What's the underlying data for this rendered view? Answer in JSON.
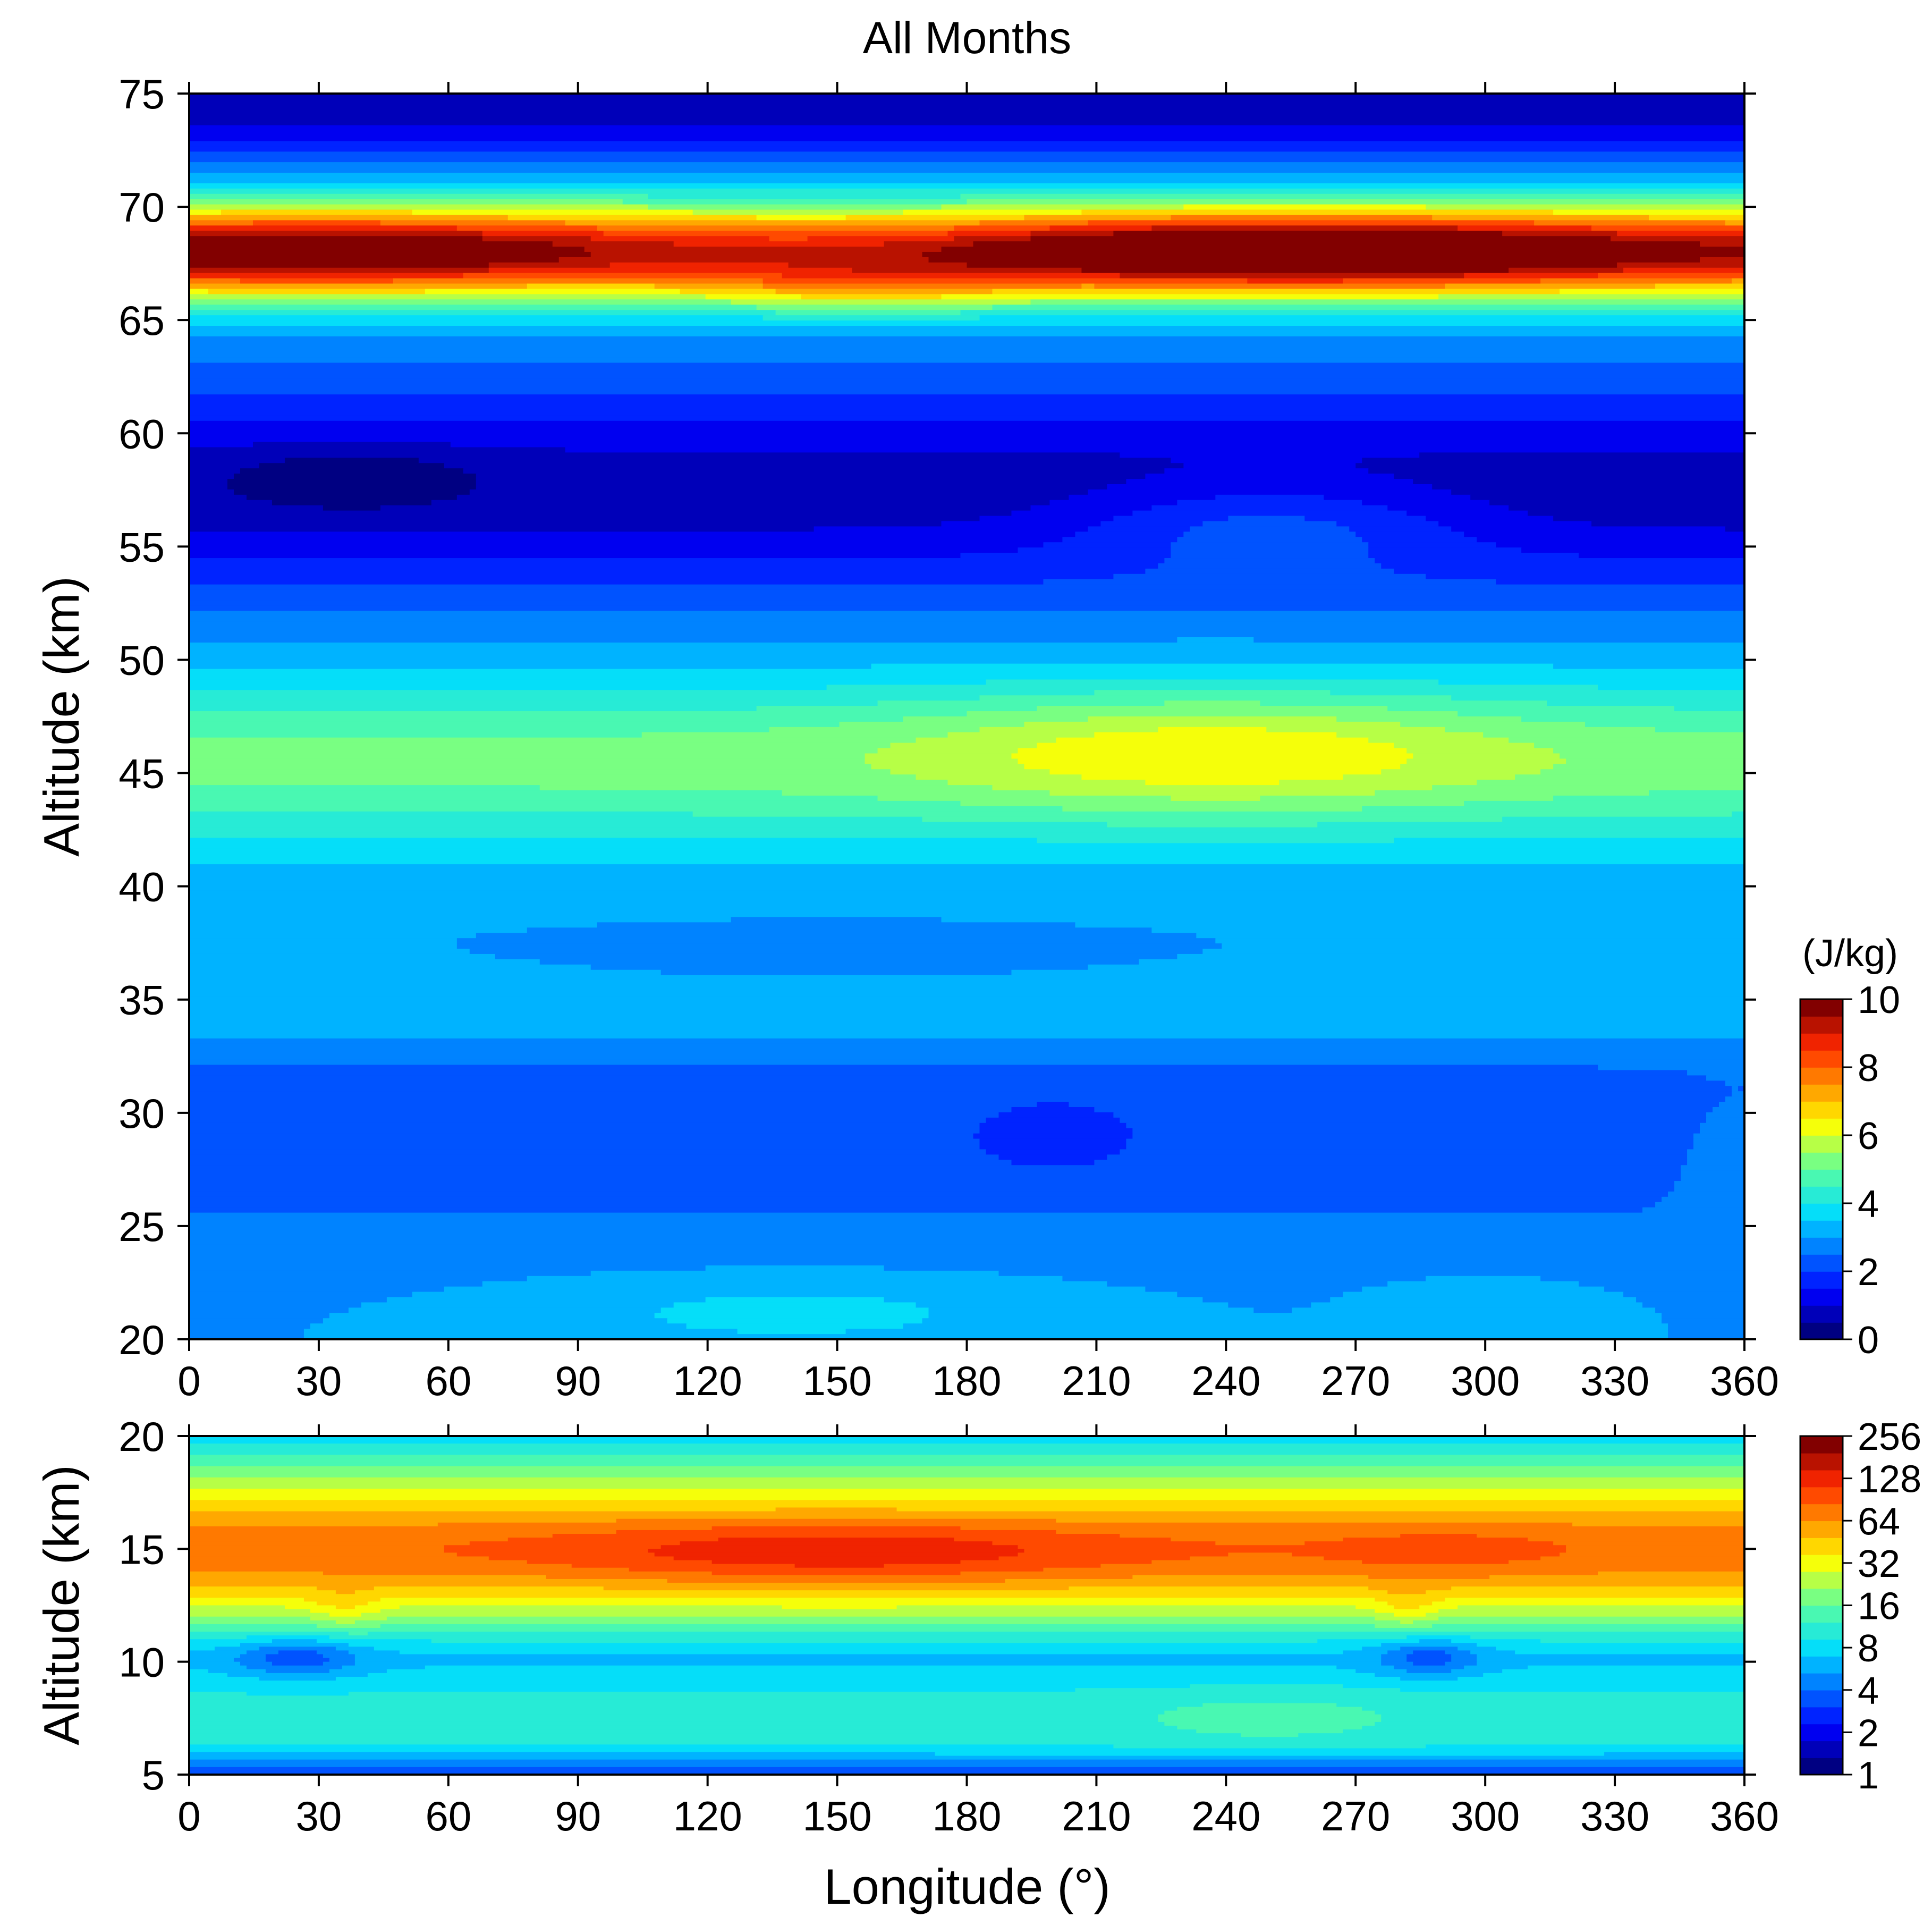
{
  "chart_data": [
    {
      "type": "heatmap",
      "title": "All Months",
      "xlabel": "",
      "ylabel": "Altitude (km)",
      "xlim": [
        0,
        360
      ],
      "ylim": [
        20,
        75
      ],
      "xticks": [
        0,
        30,
        60,
        90,
        120,
        150,
        180,
        210,
        240,
        270,
        300,
        330,
        360
      ],
      "yticks": [
        20,
        25,
        30,
        35,
        40,
        45,
        50,
        55,
        60,
        65,
        70,
        75
      ],
      "colorbar": {
        "unit": "(J/kg)",
        "scale": "linear",
        "range": [
          0,
          10
        ],
        "ticks": [
          0,
          2,
          4,
          6,
          8,
          10
        ]
      },
      "grid": false,
      "features": [
        {
          "feature": "peak band",
          "altitude_km": 68,
          "value": 9
        },
        {
          "feature": "maximum",
          "longitude": 255,
          "altitude_km": 68,
          "value": 9.8
        },
        {
          "feature": "secondary peak",
          "longitude": 155,
          "altitude_km": 66.5,
          "value": 6.2
        },
        {
          "feature": "minimum",
          "longitude": 35,
          "altitude_km": 58,
          "value": 0.3
        },
        {
          "feature": "local maximum",
          "longitude": 237,
          "altitude_km": 46,
          "value": 6
        },
        {
          "feature": "local minimum",
          "longitude": 200,
          "altitude_km": 29,
          "value": 1.2
        }
      ]
    },
    {
      "type": "heatmap",
      "title": "",
      "xlabel": "Longitude (°)",
      "ylabel": "Altitude (km)",
      "xlim": [
        0,
        360
      ],
      "ylim": [
        5,
        20
      ],
      "xticks": [
        0,
        30,
        60,
        90,
        120,
        150,
        180,
        210,
        240,
        270,
        300,
        330,
        360
      ],
      "yticks": [
        5,
        10,
        15,
        20
      ],
      "colorbar": {
        "unit": "(J/kg)",
        "scale": "log2",
        "range": [
          1,
          256
        ],
        "ticks": [
          1,
          2,
          4,
          8,
          16,
          32,
          64,
          128,
          256
        ]
      },
      "grid": false,
      "features": [
        {
          "feature": "peak band",
          "altitude_km": 15,
          "value": 90
        },
        {
          "feature": "maximum",
          "longitude": 150,
          "altitude_km": 14.8,
          "value": 160
        },
        {
          "feature": "minimum",
          "longitude": 25,
          "altitude_km": 10,
          "value": 2.5
        },
        {
          "feature": "minimum",
          "longitude": 285,
          "altitude_km": 10.3,
          "value": 3
        }
      ]
    }
  ]
}
